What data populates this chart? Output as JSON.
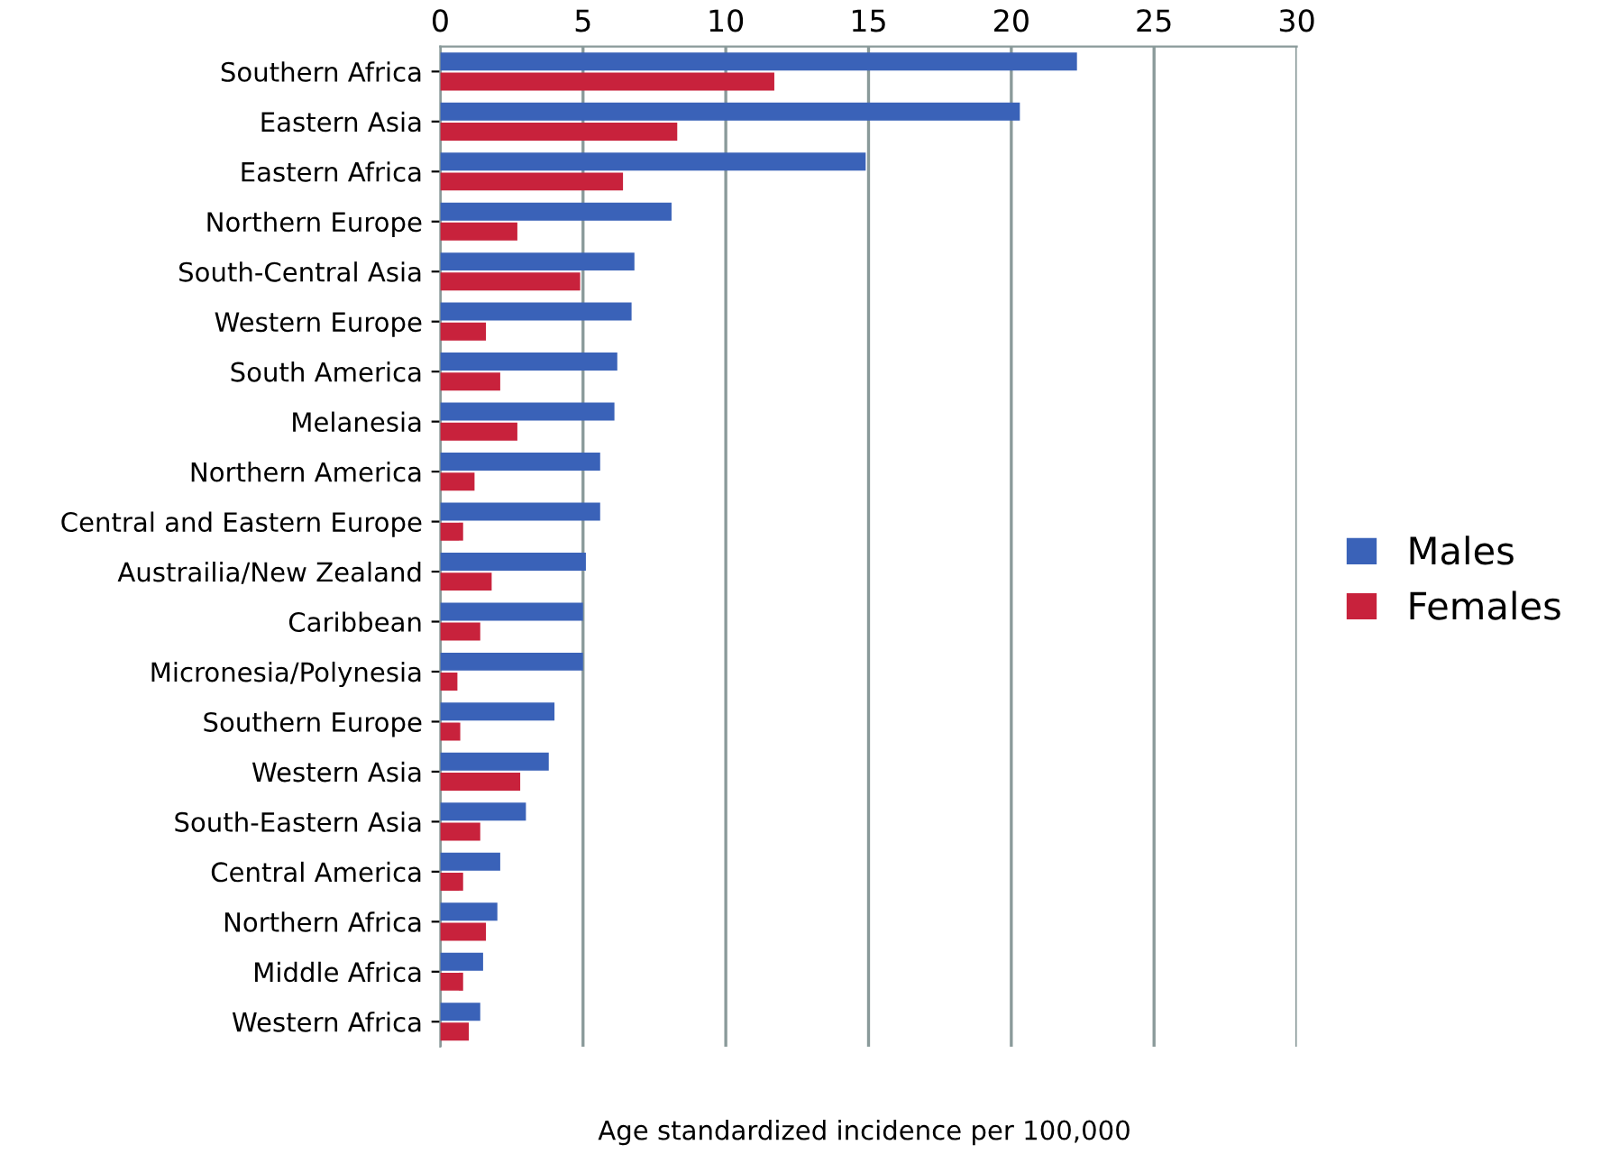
{
  "chart_data": {
    "type": "bar",
    "orientation": "horizontal",
    "xlabel": "Age standardized incidence per 100,000",
    "categories": [
      "Southern Africa",
      "Eastern Asia",
      "Eastern Africa",
      "Northern Europe",
      "South-Central Asia",
      "Western Europe",
      "South America",
      "Melanesia",
      "Northern America",
      "Central and Eastern Europe",
      "Austrailia/New Zealand",
      "Caribbean",
      "Micronesia/Polynesia",
      "Southern Europe",
      "Western Asia",
      "South-Eastern Asia",
      "Central America",
      "Northern Africa",
      "Middle Africa",
      "Western Africa"
    ],
    "series": [
      {
        "name": "Males",
        "color": "#3a62b8",
        "values": [
          22.3,
          20.3,
          14.9,
          8.1,
          6.8,
          6.7,
          6.2,
          6.1,
          5.6,
          5.6,
          5.1,
          5.0,
          5.0,
          4.0,
          3.8,
          3.0,
          2.1,
          2.0,
          1.5,
          1.4
        ]
      },
      {
        "name": "Females",
        "color": "#c8223c",
        "values": [
          11.7,
          8.3,
          6.4,
          2.7,
          4.9,
          1.6,
          2.1,
          2.7,
          1.2,
          0.8,
          1.8,
          1.4,
          0.6,
          0.7,
          2.8,
          1.4,
          0.8,
          1.6,
          0.8,
          1.0
        ]
      }
    ],
    "xlim": [
      0,
      30
    ],
    "xticks": [
      0,
      5,
      10,
      15,
      20,
      25,
      30
    ],
    "grid": "x",
    "legend": "right"
  }
}
